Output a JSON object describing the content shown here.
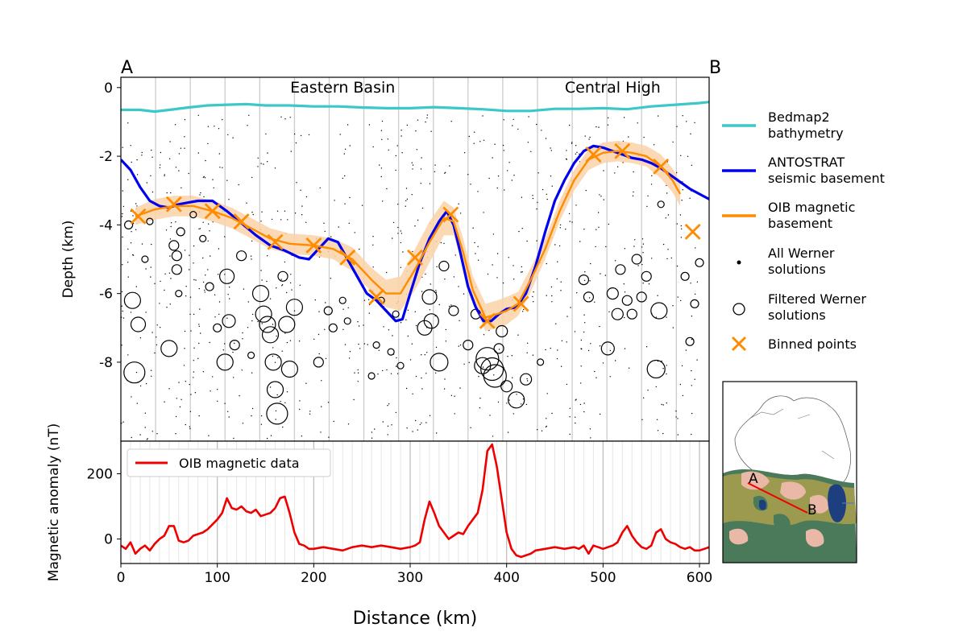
{
  "chart_data": [
    {
      "type": "line",
      "panel": "depth-profile",
      "endpoint_labels": {
        "start": "A",
        "end": "B"
      },
      "region_labels": [
        {
          "text": "Eastern Basin",
          "x": 230
        },
        {
          "text": "Central High",
          "x": 510
        }
      ],
      "xlim": [
        0,
        610
      ],
      "ylim": [
        -10.3,
        0.3
      ],
      "ylabel": "Depth (km)",
      "yticks": [
        {
          "value": 0,
          "label": "0"
        },
        {
          "value": -2,
          "label": "-2"
        },
        {
          "value": -4,
          "label": "-4"
        },
        {
          "value": -6,
          "label": "-6"
        },
        {
          "value": -8,
          "label": "-8"
        }
      ],
      "vertical_grid_x": [
        36,
        72,
        108,
        144,
        180,
        216,
        252,
        288,
        324,
        360,
        396,
        432,
        468,
        504,
        540,
        576
      ],
      "series": [
        {
          "name": "Bedmap2\nbathymetry",
          "color": "#3cc8c8",
          "x": [
            0,
            20,
            35,
            50,
            70,
            90,
            110,
            130,
            150,
            175,
            200,
            225,
            250,
            275,
            300,
            325,
            350,
            375,
            400,
            425,
            450,
            475,
            500,
            525,
            550,
            575,
            600,
            610
          ],
          "y": [
            -0.65,
            -0.65,
            -0.7,
            -0.65,
            -0.58,
            -0.52,
            -0.5,
            -0.48,
            -0.52,
            -0.52,
            -0.55,
            -0.55,
            -0.58,
            -0.6,
            -0.6,
            -0.57,
            -0.6,
            -0.63,
            -0.68,
            -0.68,
            -0.62,
            -0.62,
            -0.6,
            -0.63,
            -0.55,
            -0.5,
            -0.45,
            -0.42
          ]
        },
        {
          "name": "ANTOSTRAT\nseismic basement",
          "color": "#0000ee",
          "x": [
            0,
            10,
            20,
            30,
            40,
            50,
            60,
            70,
            80,
            95,
            110,
            125,
            140,
            155,
            170,
            185,
            195,
            205,
            215,
            225,
            235,
            245,
            255,
            265,
            275,
            285,
            292,
            300,
            310,
            320,
            330,
            338,
            345,
            352,
            360,
            368,
            376,
            384,
            392,
            400,
            410,
            420,
            430,
            440,
            450,
            460,
            470,
            480,
            490,
            500,
            510,
            520,
            530,
            540,
            550,
            560,
            570,
            580,
            590,
            600,
            610
          ],
          "y": [
            -2.1,
            -2.4,
            -2.9,
            -3.3,
            -3.45,
            -3.5,
            -3.4,
            -3.35,
            -3.3,
            -3.3,
            -3.6,
            -3.95,
            -4.3,
            -4.6,
            -4.75,
            -4.95,
            -5.0,
            -4.7,
            -4.4,
            -4.5,
            -5.0,
            -5.5,
            -6.0,
            -6.2,
            -6.5,
            -6.8,
            -6.75,
            -6.0,
            -5.1,
            -4.4,
            -3.9,
            -3.6,
            -4.0,
            -4.8,
            -5.8,
            -6.4,
            -6.8,
            -6.8,
            -6.6,
            -6.45,
            -6.4,
            -6.0,
            -5.2,
            -4.2,
            -3.3,
            -2.7,
            -2.2,
            -1.85,
            -1.7,
            -1.75,
            -1.85,
            -1.95,
            -2.05,
            -2.1,
            -2.2,
            -2.35,
            -2.55,
            -2.75,
            -2.95,
            -3.1,
            -3.25
          ]
        },
        {
          "name": "OIB magnetic\nbasement",
          "color": "#ff8c00",
          "band_color": "#fbd2a8",
          "x": [
            15,
            35,
            55,
            75,
            95,
            115,
            135,
            155,
            175,
            200,
            220,
            240,
            260,
            275,
            290,
            305,
            320,
            335,
            345,
            355,
            365,
            378,
            390,
            400,
            412,
            425,
            440,
            455,
            470,
            485,
            500,
            515,
            530,
            545,
            560,
            572,
            580
          ],
          "y": [
            -3.75,
            -3.55,
            -3.45,
            -3.45,
            -3.6,
            -3.8,
            -4.1,
            -4.4,
            -4.55,
            -4.6,
            -4.7,
            -5.0,
            -5.6,
            -6.0,
            -6.0,
            -5.3,
            -4.5,
            -3.8,
            -3.9,
            -4.8,
            -5.9,
            -6.7,
            -6.6,
            -6.5,
            -6.3,
            -5.6,
            -4.7,
            -3.6,
            -2.7,
            -2.1,
            -1.9,
            -1.85,
            -1.9,
            -2.0,
            -2.3,
            -2.7,
            -3.1
          ],
          "band": [
            0.25,
            0.3,
            0.3,
            0.3,
            0.3,
            0.3,
            0.3,
            0.3,
            0.3,
            0.3,
            0.3,
            0.35,
            0.35,
            0.4,
            0.5,
            0.6,
            0.6,
            0.5,
            0.4,
            0.4,
            0.4,
            0.4,
            0.4,
            0.4,
            0.35,
            0.35,
            0.3,
            0.3,
            0.3,
            0.3,
            0.3,
            0.3,
            0.3,
            0.3,
            0.35,
            0.35,
            0.35
          ]
        },
        {
          "name": "Binned points",
          "color": "#ff8c00",
          "marker": "x",
          "x": [
            18,
            55,
            95,
            125,
            160,
            200,
            235,
            265,
            305,
            342,
            380,
            415,
            490,
            520,
            560,
            593
          ],
          "y": [
            -3.75,
            -3.4,
            -3.6,
            -3.9,
            -4.5,
            -4.6,
            -4.95,
            -6.1,
            -4.95,
            -3.7,
            -6.8,
            -6.3,
            -1.95,
            -1.85,
            -2.3,
            -4.2
          ]
        },
        {
          "name": "Filtered Werner\nsolutions",
          "marker": "circle",
          "x": [
            8,
            12,
            14,
            18,
            25,
            30,
            50,
            55,
            58,
            58,
            60,
            62,
            75,
            85,
            92,
            100,
            108,
            110,
            112,
            118,
            125,
            135,
            145,
            148,
            152,
            155,
            158,
            160,
            162,
            168,
            172,
            175,
            180,
            205,
            215,
            220,
            230,
            235,
            260,
            265,
            270,
            280,
            285,
            290,
            315,
            320,
            322,
            330,
            335,
            345,
            360,
            368,
            375,
            380,
            385,
            388,
            392,
            395,
            400,
            410,
            420,
            435,
            480,
            485,
            505,
            510,
            515,
            518,
            525,
            530,
            535,
            540,
            545,
            555,
            558,
            560,
            585,
            590,
            595,
            600
          ],
          "y": [
            -4.0,
            -6.2,
            -8.3,
            -6.9,
            -5.0,
            -3.9,
            -7.6,
            -4.6,
            -4.9,
            -5.3,
            -6.0,
            -4.2,
            -3.7,
            -4.4,
            -5.8,
            -7.0,
            -8.0,
            -5.5,
            -6.8,
            -7.5,
            -4.9,
            -7.8,
            -6.0,
            -6.6,
            -6.9,
            -7.2,
            -8.0,
            -8.8,
            -9.5,
            -5.5,
            -6.9,
            -8.2,
            -6.4,
            -8.0,
            -6.5,
            -7.0,
            -6.2,
            -6.8,
            -8.4,
            -7.5,
            -6.2,
            -7.7,
            -6.6,
            -8.1,
            -7.0,
            -6.1,
            -6.8,
            -8.0,
            -5.2,
            -6.5,
            -7.5,
            -6.6,
            -8.1,
            -7.9,
            -8.2,
            -8.4,
            -7.6,
            -7.1,
            -8.7,
            -9.1,
            -8.5,
            -8.0,
            -5.6,
            -6.1,
            -7.6,
            -6.0,
            -6.6,
            -5.3,
            -6.2,
            -6.6,
            -5.0,
            -6.1,
            -5.5,
            -8.2,
            -6.5,
            -3.4,
            -5.5,
            -7.4,
            -6.3,
            -5.1
          ],
          "size": [
            5,
            10,
            13,
            9,
            4,
            4,
            10,
            6,
            6,
            6,
            4,
            5,
            4,
            4,
            5,
            5,
            10,
            9,
            8,
            6,
            6,
            4,
            10,
            10,
            10,
            10,
            10,
            10,
            13,
            6,
            10,
            10,
            10,
            6,
            5,
            5,
            4,
            4,
            4,
            4,
            4,
            4,
            4,
            4,
            9,
            9,
            9,
            11,
            6,
            6,
            6,
            6,
            10,
            14,
            14,
            14,
            6,
            7,
            7,
            10,
            7,
            4,
            6,
            6,
            8,
            7,
            7,
            6,
            6,
            6,
            6,
            6,
            6,
            11,
            10,
            4,
            5,
            5,
            5,
            5
          ]
        },
        {
          "name": "All Werner\nsolutions",
          "marker": "dot",
          "x": [],
          "y": []
        }
      ]
    },
    {
      "type": "line",
      "panel": "magnetic-anomaly",
      "xlim": [
        0,
        610
      ],
      "ylim": [
        -75,
        300
      ],
      "xlabel": "Distance (km)",
      "ylabel": "Magnetic anomaly (nT)",
      "xticks": [
        {
          "value": 0,
          "label": "0"
        },
        {
          "value": 100,
          "label": "100"
        },
        {
          "value": 200,
          "label": "200"
        },
        {
          "value": 300,
          "label": "300"
        },
        {
          "value": 400,
          "label": "400"
        },
        {
          "value": 500,
          "label": "500"
        },
        {
          "value": 600,
          "label": "600"
        }
      ],
      "yticks": [
        {
          "value": 200,
          "label": "200"
        },
        {
          "value": 0,
          "label": "0"
        }
      ],
      "series": [
        {
          "name": "OIB magnetic data",
          "color": "#ee0000",
          "x": [
            0,
            5,
            10,
            15,
            20,
            25,
            30,
            35,
            40,
            45,
            50,
            55,
            60,
            65,
            70,
            75,
            80,
            85,
            90,
            95,
            100,
            105,
            110,
            115,
            120,
            125,
            130,
            135,
            140,
            145,
            150,
            155,
            160,
            165,
            170,
            175,
            180,
            185,
            190,
            195,
            200,
            210,
            220,
            230,
            240,
            250,
            260,
            270,
            280,
            290,
            300,
            305,
            310,
            315,
            320,
            325,
            330,
            335,
            340,
            345,
            350,
            355,
            360,
            365,
            370,
            375,
            380,
            385,
            390,
            395,
            400,
            405,
            410,
            415,
            420,
            425,
            430,
            440,
            450,
            460,
            470,
            475,
            480,
            485,
            490,
            495,
            500,
            505,
            510,
            515,
            520,
            525,
            530,
            535,
            540,
            545,
            550,
            555,
            560,
            565,
            570,
            575,
            580,
            585,
            590,
            595,
            600,
            605,
            610
          ],
          "y": [
            -20,
            -30,
            -10,
            -45,
            -30,
            -20,
            -35,
            -15,
            0,
            10,
            40,
            40,
            -5,
            -10,
            -5,
            10,
            15,
            20,
            30,
            45,
            60,
            80,
            125,
            95,
            90,
            100,
            85,
            80,
            90,
            70,
            75,
            80,
            95,
            125,
            130,
            80,
            20,
            -15,
            -20,
            -30,
            -30,
            -25,
            -30,
            -35,
            -25,
            -20,
            -25,
            -20,
            -25,
            -30,
            -25,
            -20,
            -10,
            60,
            115,
            80,
            40,
            20,
            0,
            10,
            20,
            15,
            40,
            60,
            80,
            150,
            270,
            290,
            220,
            120,
            20,
            -30,
            -50,
            -55,
            -50,
            -45,
            -35,
            -30,
            -25,
            -30,
            -25,
            -30,
            -20,
            -45,
            -20,
            -25,
            -30,
            -25,
            -20,
            -10,
            20,
            40,
            10,
            -10,
            -25,
            -30,
            -20,
            20,
            30,
            0,
            -10,
            -15,
            -25,
            -30,
            -25,
            -35,
            -35,
            -30,
            -25
          ]
        }
      ]
    },
    {
      "type": "map",
      "panel": "location-inset",
      "labels": [
        {
          "text": "A",
          "role": "start"
        },
        {
          "text": "B",
          "role": "end"
        }
      ],
      "colors": {
        "land_low": "#e9b8a6",
        "land_mid": "#9c9a4e",
        "water_green": "#4a7a5a",
        "deep_blue": "#1d3f80",
        "profile_line": "#ee0000"
      }
    }
  ],
  "legend": {
    "placement": "right",
    "bathymetry": [
      "Bedmap2",
      "bathymetry"
    ],
    "seismic": [
      "ANTOSTRAT",
      "seismic basement"
    ],
    "magnetic_basement": [
      "OIB magnetic",
      "basement"
    ],
    "all_werner": [
      "All Werner",
      "solutions"
    ],
    "filtered_werner": [
      "Filtered Werner",
      "solutions"
    ],
    "binned": [
      "Binned points"
    ]
  }
}
